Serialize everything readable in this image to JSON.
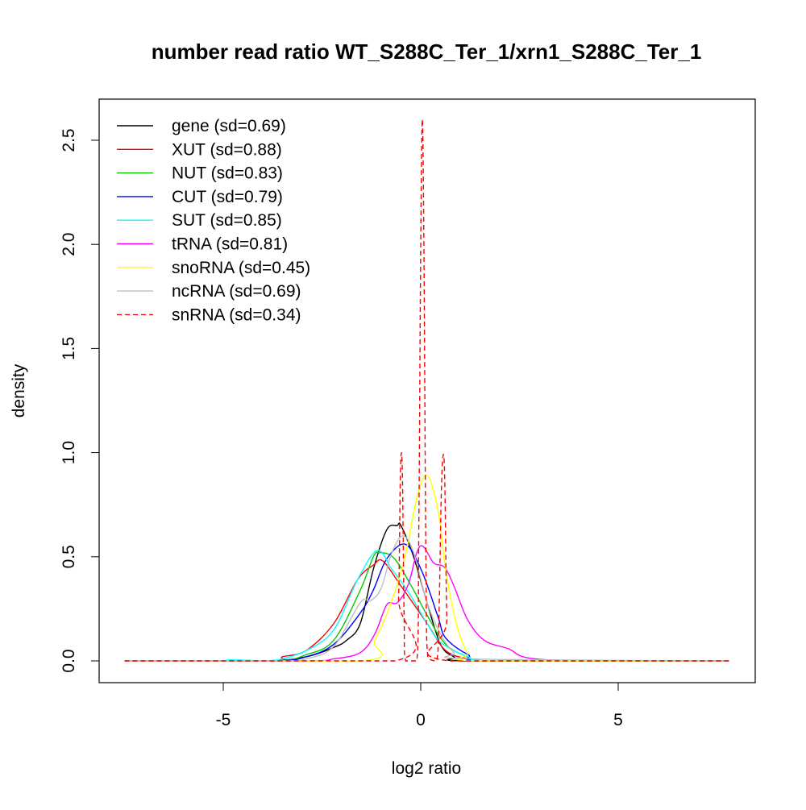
{
  "chart_data": {
    "type": "line",
    "title": "number read ratio WT_S288C_Ter_1/xrn1_S288C_Ter_1",
    "xlabel": "log2 ratio",
    "ylabel": "density",
    "xlim": [
      -8.2,
      8.4
    ],
    "ylim": [
      -0.1,
      2.7
    ],
    "xticks": [
      -5,
      0,
      5
    ],
    "xtick_labels": [
      "-5",
      "0",
      "5"
    ],
    "yticks": [
      0,
      0.5,
      1,
      1.5,
      2,
      2.5
    ],
    "ytick_labels": [
      "0.0",
      "0.5",
      "1.0",
      "1.5",
      "2.0",
      "2.5"
    ],
    "legend_position": "top-left",
    "series": [
      {
        "name": "gene (sd=0.69)",
        "color": "#000000",
        "dash": false,
        "x": [
          -7.5,
          -4,
          -2.9,
          -2.2,
          -1.87,
          -1.53,
          -1.2,
          -0.86,
          -0.6,
          -0.5,
          -0.18,
          0.16,
          0.5,
          0.84,
          1.3,
          7.8
        ],
        "y": [
          0,
          0,
          0.02,
          0.065,
          0.1,
          0.18,
          0.44,
          0.63,
          0.65,
          0.65,
          0.5,
          0.28,
          0.08,
          0.02,
          0,
          0
        ]
      },
      {
        "name": "XUT (sd=0.88)",
        "color": "#ff0000",
        "dash": false,
        "x": [
          -7.5,
          -3.8,
          -3.5,
          -2.9,
          -2.2,
          -1.6,
          -1.2,
          -0.96,
          -0.5,
          0.16,
          0.63,
          1.2,
          1.8,
          7.8
        ],
        "y": [
          0,
          0,
          0.02,
          0.05,
          0.18,
          0.39,
          0.46,
          0.48,
          0.36,
          0.18,
          0.05,
          0.01,
          0,
          0
        ]
      },
      {
        "name": "NUT (sd=0.83)",
        "color": "#00cd00",
        "dash": false,
        "x": [
          -7.5,
          -3.8,
          -2.9,
          -2.2,
          -1.53,
          -1.2,
          -1.02,
          -0.66,
          -0.18,
          0.16,
          0.63,
          1.2,
          1.8,
          7.8
        ],
        "y": [
          0,
          0,
          0.03,
          0.1,
          0.34,
          0.5,
          0.52,
          0.49,
          0.34,
          0.22,
          0.08,
          0.02,
          0,
          0
        ]
      },
      {
        "name": "CUT (sd=0.79)",
        "color": "#0000ff",
        "dash": false,
        "x": [
          -7.5,
          -3.8,
          -2.9,
          -2.2,
          -1.53,
          -1.2,
          -0.86,
          -0.39,
          0.03,
          0.44,
          0.63,
          1.2,
          1.8,
          7.8
        ],
        "y": [
          0,
          0,
          0.02,
          0.08,
          0.23,
          0.34,
          0.49,
          0.56,
          0.43,
          0.21,
          0.11,
          0.03,
          0,
          0
        ]
      },
      {
        "name": "SUT (sd=0.85)",
        "color": "#00ffff",
        "dash": false,
        "x": [
          -7.5,
          -5.2,
          -4.8,
          -3.8,
          -2.9,
          -2.2,
          -1.6,
          -1.1,
          -0.73,
          -0.31,
          0.16,
          0.5,
          1.2,
          2.0,
          7.8
        ],
        "y": [
          0,
          0,
          0.005,
          0,
          0.05,
          0.15,
          0.39,
          0.53,
          0.44,
          0.33,
          0.18,
          0.09,
          0.02,
          0,
          0
        ]
      },
      {
        "name": "tRNA (sd=0.81)",
        "color": "#ff00ff",
        "dash": false,
        "x": [
          -7.5,
          -3,
          -2.2,
          -1.53,
          -1.16,
          -0.86,
          -0.59,
          -0.31,
          -0.1,
          0.06,
          0.33,
          0.6,
          0.84,
          1.18,
          1.6,
          2.2,
          3.2,
          7.8
        ],
        "y": [
          0,
          0,
          0.01,
          0.04,
          0.13,
          0.27,
          0.28,
          0.37,
          0.52,
          0.55,
          0.47,
          0.45,
          0.36,
          0.2,
          0.1,
          0.06,
          0.005,
          0
        ]
      },
      {
        "name": "snoRNA (sd=0.45)",
        "color": "#ffff00",
        "dash": false,
        "x": [
          -7.5,
          -1.53,
          -1.16,
          -0.75,
          -0.4,
          -0.1,
          0.16,
          0.44,
          0.63,
          0.9,
          1.18,
          1.45,
          7.8
        ],
        "y": [
          0,
          0,
          0.1,
          0.28,
          0.5,
          0.78,
          0.89,
          0.72,
          0.44,
          0.18,
          0.04,
          0,
          0
        ]
      },
      {
        "name": "ncRNA (sd=0.69)",
        "color": "#bebebe",
        "dash": false,
        "x": [
          -7.5,
          -3.6,
          -2.9,
          -2.2,
          -1.53,
          -1.26,
          -1.0,
          -0.73,
          -0.45,
          -0.18,
          0.16,
          0.5,
          0.84,
          1.2,
          7.8
        ],
        "y": [
          0,
          0,
          0.01,
          0.07,
          0.28,
          0.29,
          0.35,
          0.52,
          0.6,
          0.52,
          0.28,
          0.13,
          0.04,
          0.01,
          0
        ]
      },
      {
        "name": "snRNA (sd=0.34)",
        "color": "#ff0000",
        "dash": true,
        "x": [
          -7.5,
          -0.65,
          -0.56,
          -0.52,
          -0.49,
          -0.46,
          -0.42,
          -0.38,
          -0.1,
          -0.05,
          0,
          0.04,
          0.08,
          0.13,
          0.18,
          0.4,
          0.46,
          0.52,
          0.57,
          0.61,
          0.66,
          0.72,
          7.8
        ],
        "y": [
          0,
          0,
          0.3,
          0.85,
          1.0,
          0.85,
          0.2,
          0,
          0,
          0.6,
          2.0,
          2.6,
          2.0,
          0.5,
          0.02,
          0,
          0.2,
          0.8,
          0.99,
          0.85,
          0.2,
          0,
          0
        ]
      }
    ]
  }
}
